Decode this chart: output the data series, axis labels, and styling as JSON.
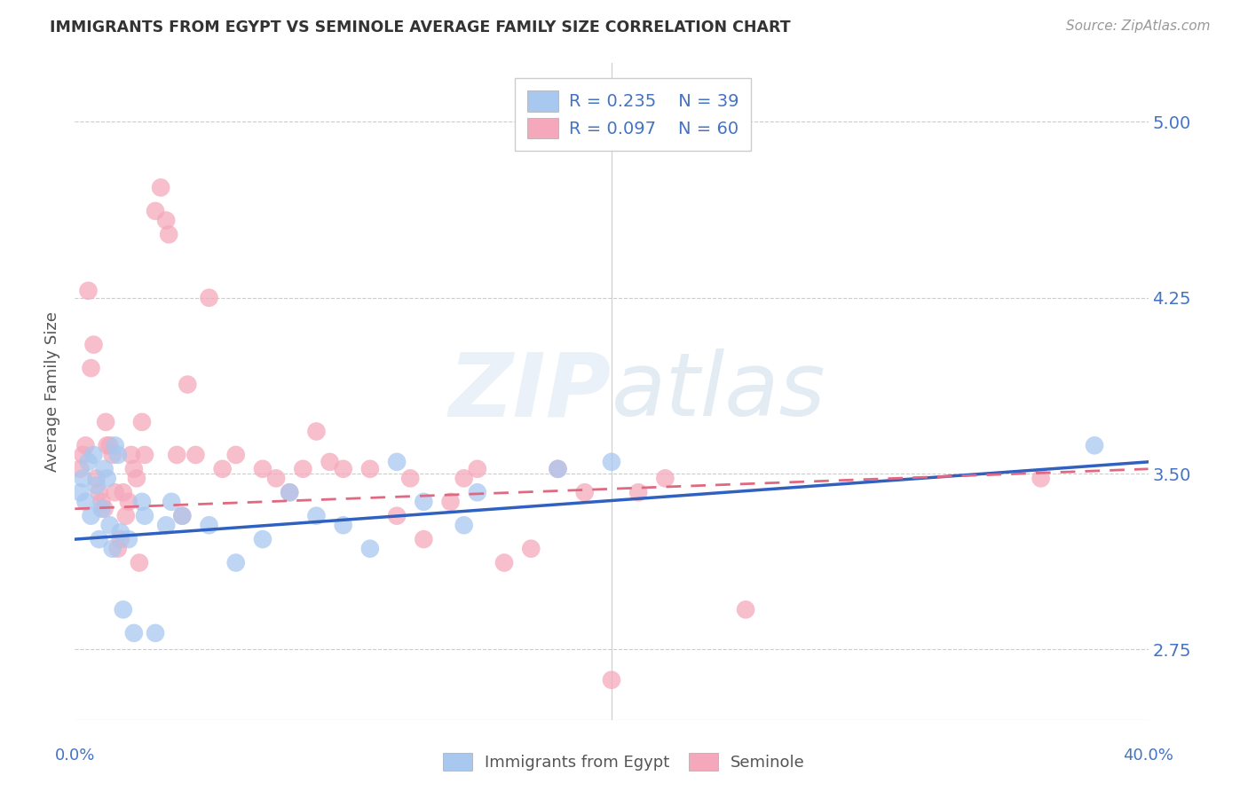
{
  "title": "IMMIGRANTS FROM EGYPT VS SEMINOLE AVERAGE FAMILY SIZE CORRELATION CHART",
  "source": "Source: ZipAtlas.com",
  "ylabel": "Average Family Size",
  "xmin": 0.0,
  "xmax": 40.0,
  "ymin": 2.45,
  "ymax": 5.25,
  "yticks": [
    2.75,
    3.5,
    4.25,
    5.0
  ],
  "xtick_positions": [
    0.0,
    5.0,
    10.0,
    15.0,
    20.0,
    25.0,
    30.0,
    35.0,
    40.0
  ],
  "watermark": "ZIPatlas",
  "legend_r1": "R = 0.235",
  "legend_n1": "N = 39",
  "legend_r2": "R = 0.097",
  "legend_n2": "N = 60",
  "legend_label1": "Immigrants from Egypt",
  "legend_label2": "Seminole",
  "blue_color": "#A8C8F0",
  "pink_color": "#F5A8BC",
  "blue_line_color": "#3060C0",
  "pink_line_color": "#E06880",
  "axis_color": "#4472C4",
  "blue_scatter": [
    [
      0.2,
      3.42
    ],
    [
      0.3,
      3.48
    ],
    [
      0.4,
      3.38
    ],
    [
      0.5,
      3.55
    ],
    [
      0.6,
      3.32
    ],
    [
      0.7,
      3.58
    ],
    [
      0.8,
      3.45
    ],
    [
      0.9,
      3.22
    ],
    [
      1.0,
      3.35
    ],
    [
      1.1,
      3.52
    ],
    [
      1.2,
      3.48
    ],
    [
      1.3,
      3.28
    ],
    [
      1.4,
      3.18
    ],
    [
      1.5,
      3.62
    ],
    [
      1.6,
      3.58
    ],
    [
      1.7,
      3.25
    ],
    [
      1.8,
      2.92
    ],
    [
      2.0,
      3.22
    ],
    [
      2.2,
      2.82
    ],
    [
      2.5,
      3.38
    ],
    [
      2.6,
      3.32
    ],
    [
      3.0,
      2.82
    ],
    [
      3.4,
      3.28
    ],
    [
      3.6,
      3.38
    ],
    [
      4.0,
      3.32
    ],
    [
      5.0,
      3.28
    ],
    [
      6.0,
      3.12
    ],
    [
      7.0,
      3.22
    ],
    [
      8.0,
      3.42
    ],
    [
      9.0,
      3.32
    ],
    [
      10.0,
      3.28
    ],
    [
      11.0,
      3.18
    ],
    [
      12.0,
      3.55
    ],
    [
      13.0,
      3.38
    ],
    [
      14.5,
      3.28
    ],
    [
      15.0,
      3.42
    ],
    [
      18.0,
      3.52
    ],
    [
      20.0,
      3.55
    ],
    [
      38.0,
      3.62
    ]
  ],
  "pink_scatter": [
    [
      0.2,
      3.52
    ],
    [
      0.3,
      3.58
    ],
    [
      0.4,
      3.62
    ],
    [
      0.5,
      4.28
    ],
    [
      0.6,
      3.95
    ],
    [
      0.7,
      4.05
    ],
    [
      0.8,
      3.48
    ],
    [
      0.9,
      3.42
    ],
    [
      1.0,
      3.38
    ],
    [
      1.1,
      3.35
    ],
    [
      1.15,
      3.72
    ],
    [
      1.2,
      3.62
    ],
    [
      1.3,
      3.62
    ],
    [
      1.4,
      3.58
    ],
    [
      1.5,
      3.42
    ],
    [
      1.6,
      3.18
    ],
    [
      1.7,
      3.22
    ],
    [
      1.8,
      3.42
    ],
    [
      1.9,
      3.32
    ],
    [
      2.0,
      3.38
    ],
    [
      2.1,
      3.58
    ],
    [
      2.2,
      3.52
    ],
    [
      2.3,
      3.48
    ],
    [
      2.4,
      3.12
    ],
    [
      2.5,
      3.72
    ],
    [
      2.6,
      3.58
    ],
    [
      3.0,
      4.62
    ],
    [
      3.2,
      4.72
    ],
    [
      3.4,
      4.58
    ],
    [
      3.5,
      4.52
    ],
    [
      3.8,
      3.58
    ],
    [
      4.0,
      3.32
    ],
    [
      4.2,
      3.88
    ],
    [
      4.5,
      3.58
    ],
    [
      5.0,
      4.25
    ],
    [
      5.5,
      3.52
    ],
    [
      6.0,
      3.58
    ],
    [
      7.0,
      3.52
    ],
    [
      7.5,
      3.48
    ],
    [
      8.0,
      3.42
    ],
    [
      8.5,
      3.52
    ],
    [
      9.0,
      3.68
    ],
    [
      9.5,
      3.55
    ],
    [
      10.0,
      3.52
    ],
    [
      11.0,
      3.52
    ],
    [
      12.0,
      3.32
    ],
    [
      12.5,
      3.48
    ],
    [
      13.0,
      3.22
    ],
    [
      14.0,
      3.38
    ],
    [
      14.5,
      3.48
    ],
    [
      15.0,
      3.52
    ],
    [
      16.0,
      3.12
    ],
    [
      17.0,
      3.18
    ],
    [
      18.0,
      3.52
    ],
    [
      19.0,
      3.42
    ],
    [
      20.0,
      2.62
    ],
    [
      21.0,
      3.42
    ],
    [
      22.0,
      3.48
    ],
    [
      25.0,
      2.92
    ],
    [
      36.0,
      3.48
    ]
  ],
  "blue_trend": [
    0.0,
    40.0,
    3.22,
    3.55
  ],
  "pink_trend": [
    0.0,
    40.0,
    3.35,
    3.52
  ]
}
